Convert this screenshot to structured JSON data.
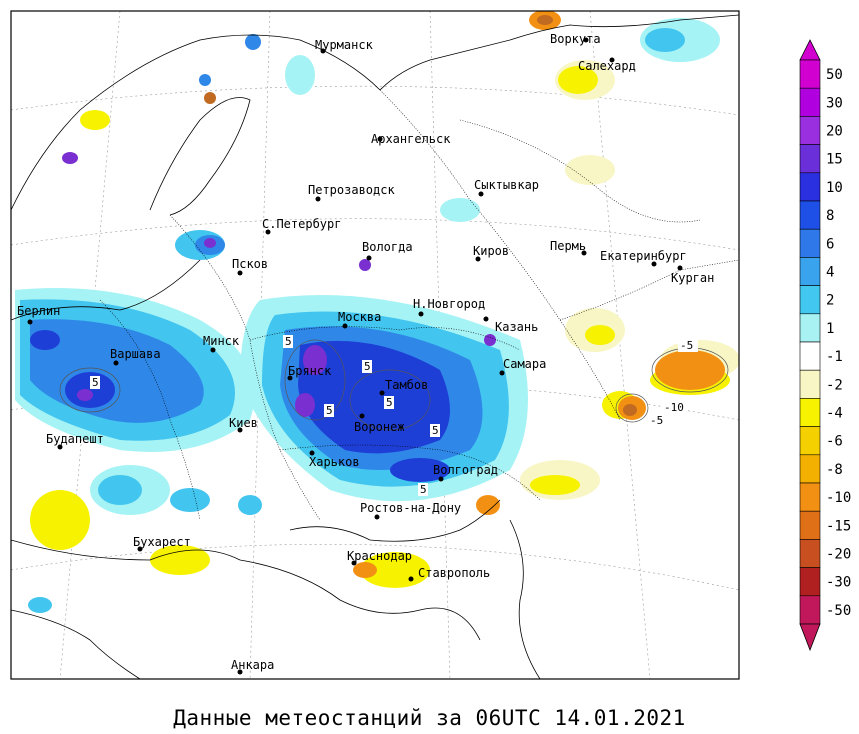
{
  "caption": "Данные метеостанций за 06UTC 14.01.2021",
  "colors": {
    "blue_dark": "#1e3fd6",
    "blue_mid": "#2f88e8",
    "blue_light": "#42c5ef",
    "cyan_pale": "#a6f3f5",
    "purple": "#7a2fd0",
    "yellow": "#f7f200",
    "yellow_pale": "#f8f6c4",
    "orange": "#f2a11c",
    "brown": "#c06a22"
  },
  "cities": [
    {
      "name": "Мурманск"
    },
    {
      "name": "Воркута"
    },
    {
      "name": "Салехард"
    },
    {
      "name": "Архангельск"
    },
    {
      "name": "Петрозаводск"
    },
    {
      "name": "Сыктывкар"
    },
    {
      "name": "С.Петербург"
    },
    {
      "name": "Вологда"
    },
    {
      "name": "Киров"
    },
    {
      "name": "Пермь"
    },
    {
      "name": "Екатеринбург"
    },
    {
      "name": "Псков"
    },
    {
      "name": "Курган"
    },
    {
      "name": "Берлин"
    },
    {
      "name": "Н.Новгород"
    },
    {
      "name": "Москва"
    },
    {
      "name": "Казань"
    },
    {
      "name": "Минск"
    },
    {
      "name": "Варшава"
    },
    {
      "name": "Брянск"
    },
    {
      "name": "Самара"
    },
    {
      "name": "Тамбов"
    },
    {
      "name": "Киев"
    },
    {
      "name": "Воронеж"
    },
    {
      "name": "Будапешт"
    },
    {
      "name": "Харьков"
    },
    {
      "name": "Волгоград"
    },
    {
      "name": "Ростов-на-Дону"
    },
    {
      "name": "Бухарест"
    },
    {
      "name": "Краснодар"
    },
    {
      "name": "Ставрополь"
    },
    {
      "name": "Анкара"
    }
  ],
  "contour_labels": [
    "5",
    "5",
    "5",
    "5",
    "5",
    "5",
    "5",
    "-5",
    "-10",
    "-5"
  ],
  "legend": {
    "items": [
      {
        "label": "50",
        "color": "#d100d1"
      },
      {
        "label": "30",
        "color": "#b000e0"
      },
      {
        "label": "20",
        "color": "#9a2fe0"
      },
      {
        "label": "15",
        "color": "#6a2fd8"
      },
      {
        "label": "10",
        "color": "#2a2fe0"
      },
      {
        "label": "8",
        "color": "#1e50e8"
      },
      {
        "label": "6",
        "color": "#2f78ea"
      },
      {
        "label": "4",
        "color": "#3aa3ee"
      },
      {
        "label": "2",
        "color": "#42c8f0"
      },
      {
        "label": "1",
        "color": "#a8f2f4"
      },
      {
        "label": "-1",
        "color": "#ffffff"
      },
      {
        "label": "-2",
        "color": "#f8f6c4"
      },
      {
        "label": "-4",
        "color": "#f7f200"
      },
      {
        "label": "-6",
        "color": "#f5d000"
      },
      {
        "label": "-8",
        "color": "#f4b000"
      },
      {
        "label": "-10",
        "color": "#f29014"
      },
      {
        "label": "-15",
        "color": "#e07018"
      },
      {
        "label": "-20",
        "color": "#c85020"
      },
      {
        "label": "-30",
        "color": "#b02020"
      },
      {
        "label": "-50",
        "color": "#c0185a"
      }
    ]
  }
}
